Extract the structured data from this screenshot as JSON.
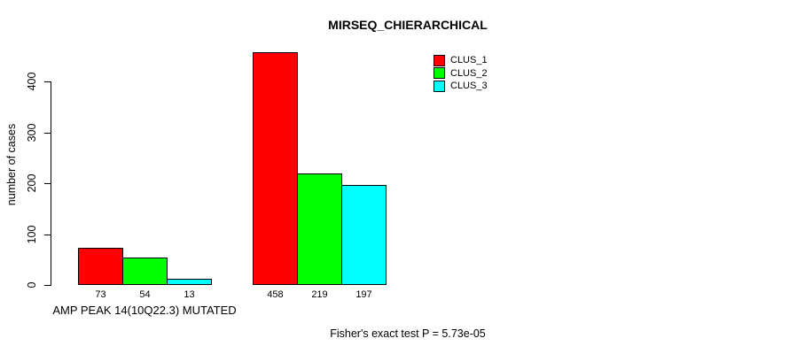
{
  "chart_data": {
    "type": "bar",
    "title": "MIRSEQ_CHIERARCHICAL",
    "ylabel": "number of cases",
    "xlabel": "AMP PEAK 14(10Q22.3) MUTATED",
    "footnote": "Fisher's exact test P = 5.73e-05",
    "yticks": [
      0,
      100,
      200,
      300,
      400
    ],
    "ylim": [
      0,
      460
    ],
    "grid": false,
    "legend_position": "top-right",
    "group_count": 2,
    "series": [
      {
        "name": "CLUS_1",
        "color": "#FF0000",
        "values": [
          73,
          458
        ]
      },
      {
        "name": "CLUS_2",
        "color": "#00FF00",
        "values": [
          54,
          219
        ]
      },
      {
        "name": "CLUS_3",
        "color": "#00FFFF",
        "values": [
          13,
          197
        ]
      }
    ],
    "bar_value_labels": [
      [
        73,
        54,
        13
      ],
      [
        458,
        219,
        197
      ]
    ],
    "colors": {
      "background": "#FFFFFF",
      "axis": "#000000",
      "text": "#000000",
      "bar_border": "#000000"
    }
  }
}
